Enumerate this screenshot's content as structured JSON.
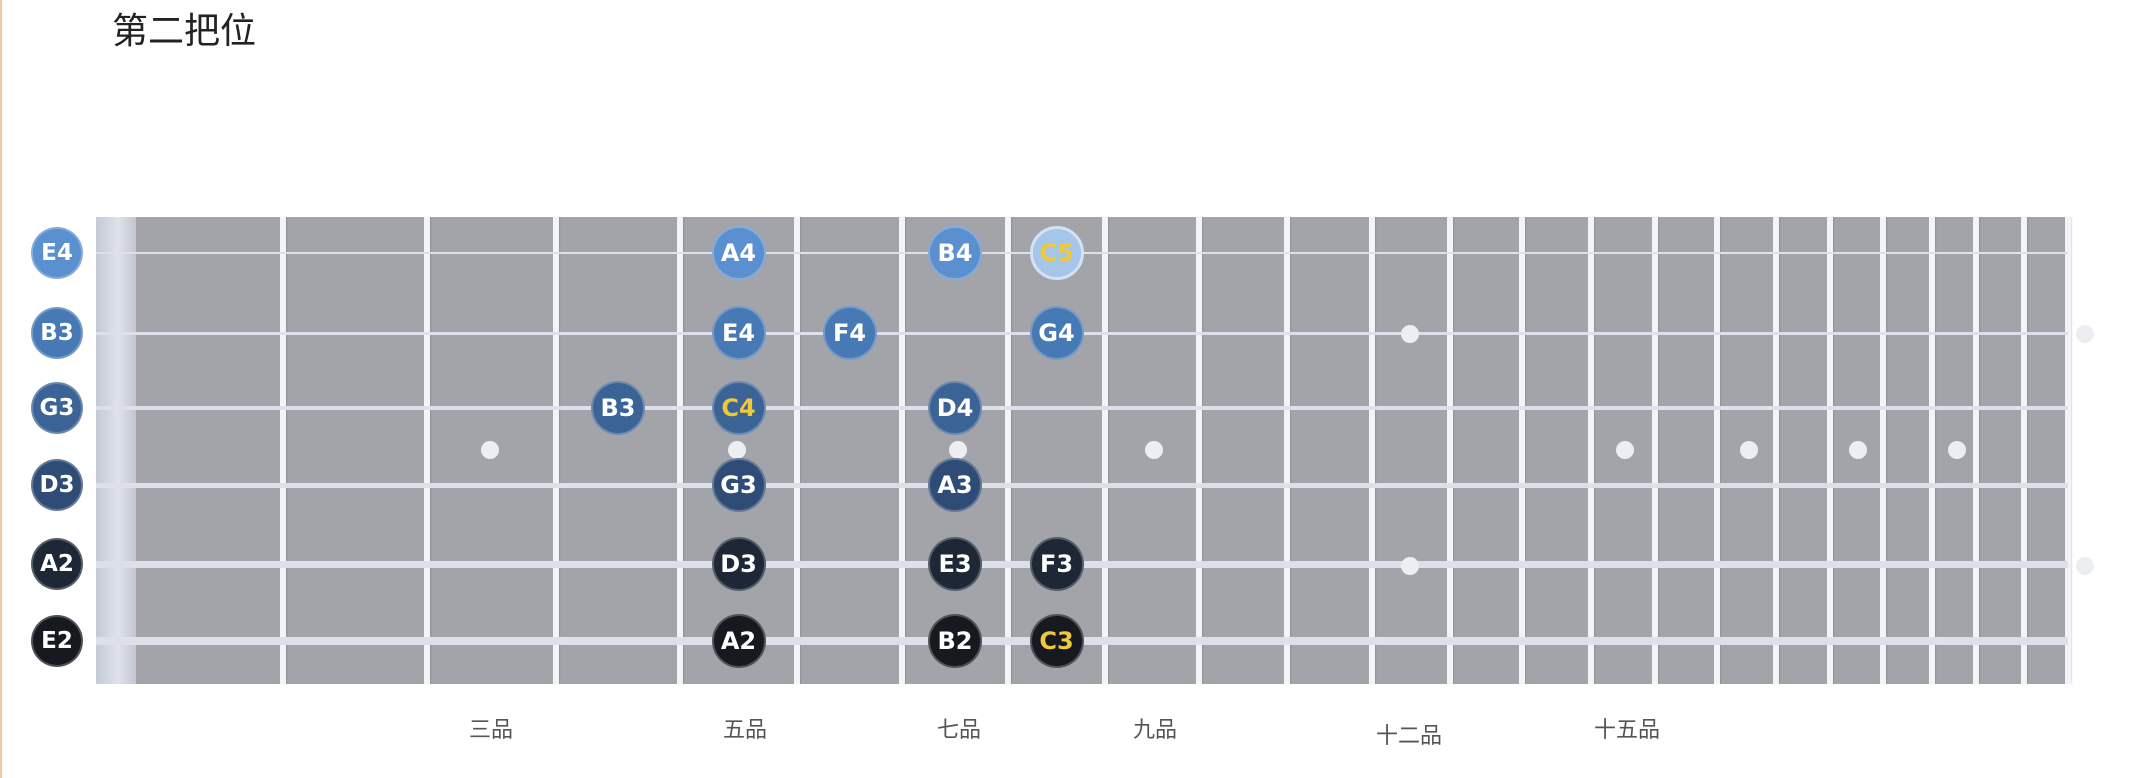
{
  "title": "第二把位",
  "fret_labels": [
    "三品",
    "五品",
    "七品",
    "九品",
    "十二品",
    "十五品"
  ],
  "colors": {
    "string_1": "#5a8fd0",
    "string_2": "#4779b5",
    "string_3": "#3b6396",
    "string_4": "#2e4c75",
    "string_5": "#1d2736",
    "string_6": "#16191f",
    "c_note_text": "#f0c93a",
    "c_note_light_bg": "#a5c6e8"
  },
  "open_strings": [
    {
      "label": "E4",
      "string": 1
    },
    {
      "label": "B3",
      "string": 2
    },
    {
      "label": "G3",
      "string": 3
    },
    {
      "label": "D3",
      "string": 4
    },
    {
      "label": "A2",
      "string": 5
    },
    {
      "label": "E2",
      "string": 6
    }
  ],
  "notes": [
    {
      "label": "A4",
      "string": 1,
      "fret": 5
    },
    {
      "label": "B4",
      "string": 1,
      "fret": 7
    },
    {
      "label": "C5",
      "string": 1,
      "fret": 8
    },
    {
      "label": "E4",
      "string": 2,
      "fret": 5
    },
    {
      "label": "F4",
      "string": 2,
      "fret": 6
    },
    {
      "label": "G4",
      "string": 2,
      "fret": 8
    },
    {
      "label": "B3",
      "string": 3,
      "fret": 4
    },
    {
      "label": "C4",
      "string": 3,
      "fret": 5
    },
    {
      "label": "D4",
      "string": 3,
      "fret": 7
    },
    {
      "label": "G3",
      "string": 4,
      "fret": 5
    },
    {
      "label": "A3",
      "string": 4,
      "fret": 7
    },
    {
      "label": "D3",
      "string": 5,
      "fret": 5
    },
    {
      "label": "E3",
      "string": 5,
      "fret": 7
    },
    {
      "label": "F3",
      "string": 5,
      "fret": 8
    },
    {
      "label": "A2",
      "string": 6,
      "fret": 5
    },
    {
      "label": "B2",
      "string": 6,
      "fret": 7
    },
    {
      "label": "C3",
      "string": 6,
      "fret": 8
    }
  ]
}
